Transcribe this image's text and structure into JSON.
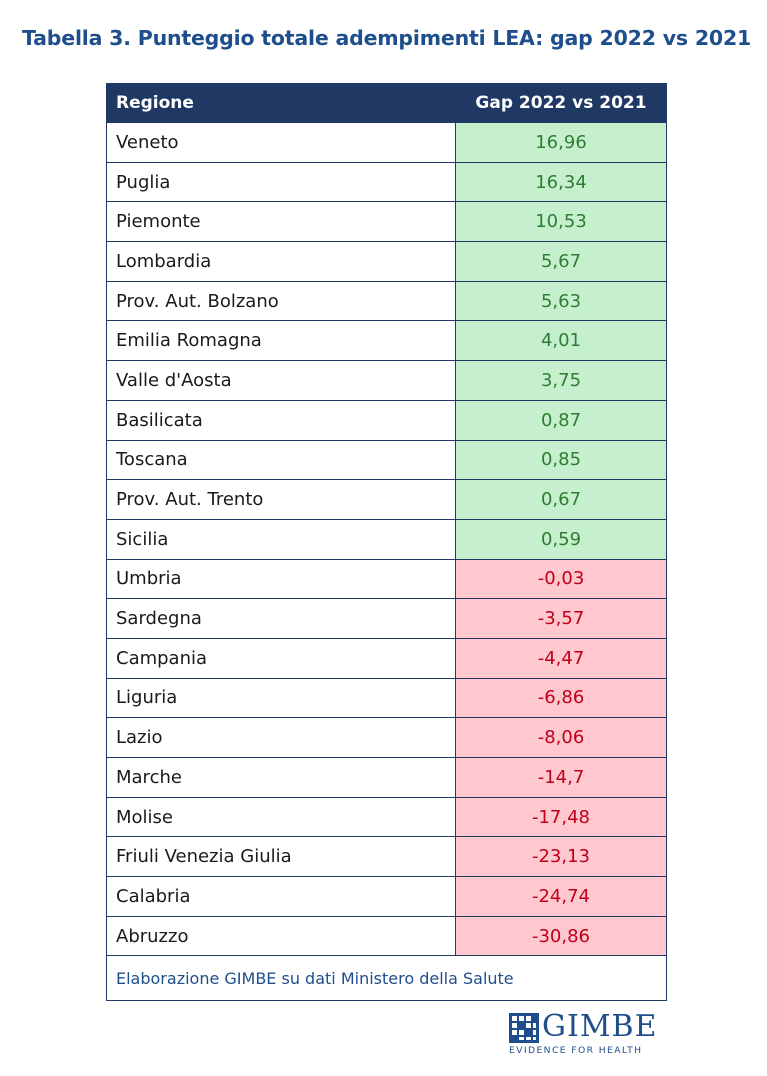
{
  "title": "Tabella 3.  Punteggio totale adempimenti LEA: gap 2022 vs 2021",
  "table": {
    "headers": {
      "region": "Regione",
      "gap": "Gap 2022 vs 2021"
    },
    "rows": [
      {
        "region": "Veneto",
        "gap": "16,96"
      },
      {
        "region": "Puglia",
        "gap": "16,34"
      },
      {
        "region": "Piemonte",
        "gap": "10,53"
      },
      {
        "region": "Lombardia",
        "gap": "5,67"
      },
      {
        "region": "Prov. Aut. Bolzano",
        "gap": "5,63"
      },
      {
        "region": "Emilia Romagna",
        "gap": "4,01"
      },
      {
        "region": "Valle d'Aosta",
        "gap": "3,75"
      },
      {
        "region": "Basilicata",
        "gap": "0,87"
      },
      {
        "region": "Toscana",
        "gap": "0,85"
      },
      {
        "region": "Prov. Aut. Trento",
        "gap": "0,67"
      },
      {
        "region": "Sicilia",
        "gap": "0,59"
      },
      {
        "region": "Umbria",
        "gap": "-0,03"
      },
      {
        "region": "Sardegna",
        "gap": "-3,57"
      },
      {
        "region": "Campania",
        "gap": "-4,47"
      },
      {
        "region": "Liguria",
        "gap": "-6,86"
      },
      {
        "region": "Lazio",
        "gap": "-8,06"
      },
      {
        "region": "Marche",
        "gap": "-14,7"
      },
      {
        "region": "Molise",
        "gap": "-17,48"
      },
      {
        "region": "Friuli Venezia Giulia",
        "gap": "-23,13"
      },
      {
        "region": "Calabria",
        "gap": "-24,74"
      },
      {
        "region": "Abruzzo",
        "gap": "-30,86"
      }
    ],
    "footer": "Elaborazione GIMBE su dati Ministero della Salute"
  },
  "logo": {
    "name": "GIMBE",
    "tagline": "EVIDENCE FOR HEALTH"
  },
  "colors": {
    "header_bg": "#1f3864",
    "title": "#1f4e8c",
    "positive_bg": "#c6efce",
    "positive_text": "#2e7d32",
    "negative_bg": "#ffc7ce",
    "negative_text": "#c0001a"
  }
}
